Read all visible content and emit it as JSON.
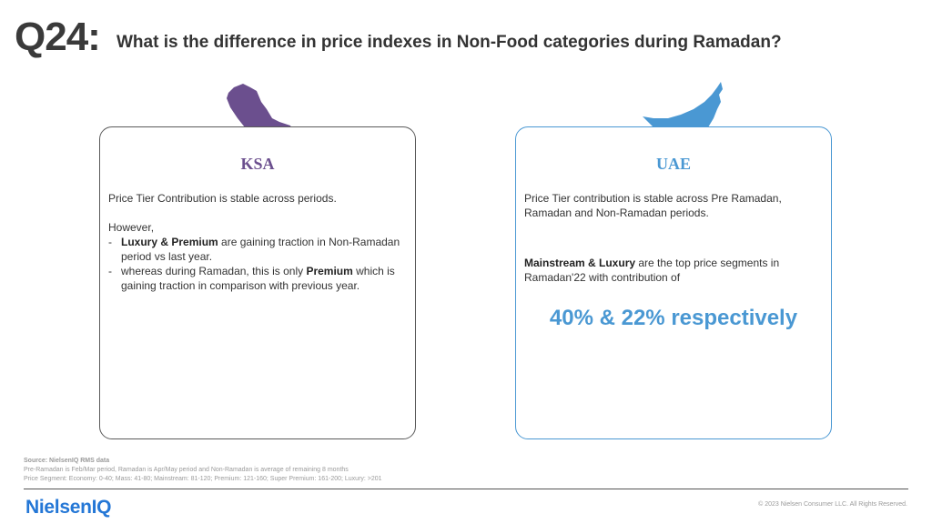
{
  "header": {
    "number": "Q24:",
    "question": "What is the difference in price indexes in Non-Food categories during Ramadan?"
  },
  "ksa": {
    "title": "KSA",
    "intro": "Price Tier Contribution is stable across periods.",
    "however": "However,",
    "bullet1": {
      "dash": "-",
      "bold": "Luxury & Premium",
      "text": " are gaining traction in Non-Ramadan period vs last year."
    },
    "bullet2": {
      "dash": "-",
      "pre": "whereas during Ramadan, this is only ",
      "bold": "Premium",
      "text": " which is gaining traction in comparison with previous year."
    }
  },
  "uae": {
    "title": "UAE",
    "intro": "Price Tier contribution is stable across Pre Ramadan, Ramadan and Non-Ramadan periods.",
    "bold": "Mainstream & Luxury",
    "text": " are the top price segments in Ramadan'22 with contribution of",
    "stat": "40% & 22% respectively"
  },
  "footer": {
    "source": "Source: NielsenIQ RMS data",
    "note1": "Pre-Ramadan is Feb/Mar period, Ramadan is Apr/May period and Non-Ramadan is average of remaining 8 months",
    "note2": "Price Segment: Economy: 0-40; Mass: 41-80; Mainstream: 81-120; Premium: 121-160; Super Premium: 161-200; Luxury: >201",
    "logo": "NielsenIQ",
    "copyright": "© 2023 Nielsen Consumer LLC. All Rights Reserved."
  },
  "colors": {
    "ksa_accent": "#6b4f8e",
    "uae_accent": "#4a98d3",
    "brand": "#2477d6"
  },
  "icons": {
    "ksa_map": "saudi-arabia-map-icon",
    "uae_map": "uae-map-icon"
  }
}
